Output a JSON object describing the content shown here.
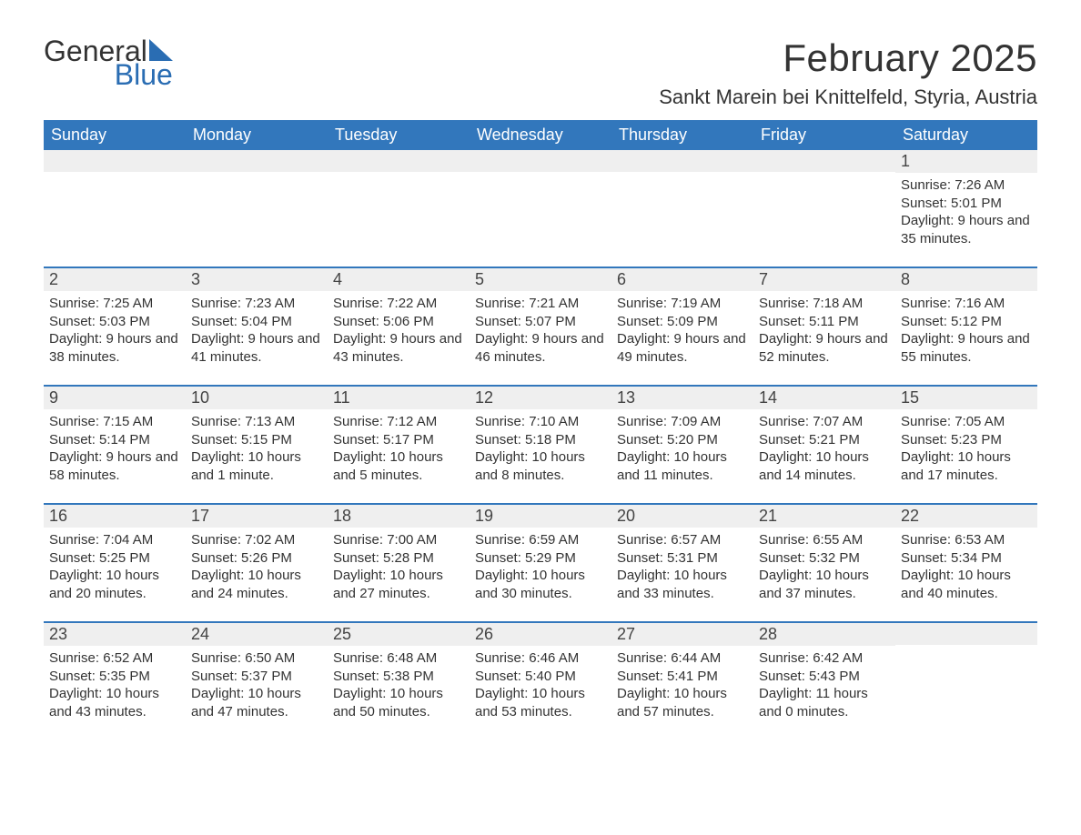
{
  "brand": {
    "name1": "General",
    "name2": "Blue",
    "accent": "#2a6db3"
  },
  "header": {
    "title": "February 2025",
    "location": "Sankt Marein bei Knittelfeld, Styria, Austria"
  },
  "colors": {
    "header_bg": "#3277bc",
    "header_text": "#ffffff",
    "daynum_bg": "#efefef",
    "divider": "#3277bc",
    "text": "#333333",
    "page_bg": "#ffffff"
  },
  "dow": [
    "Sunday",
    "Monday",
    "Tuesday",
    "Wednesday",
    "Thursday",
    "Friday",
    "Saturday"
  ],
  "weeks": [
    [
      {
        "n": "",
        "sr": "",
        "ss": "",
        "dl": ""
      },
      {
        "n": "",
        "sr": "",
        "ss": "",
        "dl": ""
      },
      {
        "n": "",
        "sr": "",
        "ss": "",
        "dl": ""
      },
      {
        "n": "",
        "sr": "",
        "ss": "",
        "dl": ""
      },
      {
        "n": "",
        "sr": "",
        "ss": "",
        "dl": ""
      },
      {
        "n": "",
        "sr": "",
        "ss": "",
        "dl": ""
      },
      {
        "n": "1",
        "sr": "Sunrise: 7:26 AM",
        "ss": "Sunset: 5:01 PM",
        "dl": "Daylight: 9 hours and 35 minutes."
      }
    ],
    [
      {
        "n": "2",
        "sr": "Sunrise: 7:25 AM",
        "ss": "Sunset: 5:03 PM",
        "dl": "Daylight: 9 hours and 38 minutes."
      },
      {
        "n": "3",
        "sr": "Sunrise: 7:23 AM",
        "ss": "Sunset: 5:04 PM",
        "dl": "Daylight: 9 hours and 41 minutes."
      },
      {
        "n": "4",
        "sr": "Sunrise: 7:22 AM",
        "ss": "Sunset: 5:06 PM",
        "dl": "Daylight: 9 hours and 43 minutes."
      },
      {
        "n": "5",
        "sr": "Sunrise: 7:21 AM",
        "ss": "Sunset: 5:07 PM",
        "dl": "Daylight: 9 hours and 46 minutes."
      },
      {
        "n": "6",
        "sr": "Sunrise: 7:19 AM",
        "ss": "Sunset: 5:09 PM",
        "dl": "Daylight: 9 hours and 49 minutes."
      },
      {
        "n": "7",
        "sr": "Sunrise: 7:18 AM",
        "ss": "Sunset: 5:11 PM",
        "dl": "Daylight: 9 hours and 52 minutes."
      },
      {
        "n": "8",
        "sr": "Sunrise: 7:16 AM",
        "ss": "Sunset: 5:12 PM",
        "dl": "Daylight: 9 hours and 55 minutes."
      }
    ],
    [
      {
        "n": "9",
        "sr": "Sunrise: 7:15 AM",
        "ss": "Sunset: 5:14 PM",
        "dl": "Daylight: 9 hours and 58 minutes."
      },
      {
        "n": "10",
        "sr": "Sunrise: 7:13 AM",
        "ss": "Sunset: 5:15 PM",
        "dl": "Daylight: 10 hours and 1 minute."
      },
      {
        "n": "11",
        "sr": "Sunrise: 7:12 AM",
        "ss": "Sunset: 5:17 PM",
        "dl": "Daylight: 10 hours and 5 minutes."
      },
      {
        "n": "12",
        "sr": "Sunrise: 7:10 AM",
        "ss": "Sunset: 5:18 PM",
        "dl": "Daylight: 10 hours and 8 minutes."
      },
      {
        "n": "13",
        "sr": "Sunrise: 7:09 AM",
        "ss": "Sunset: 5:20 PM",
        "dl": "Daylight: 10 hours and 11 minutes."
      },
      {
        "n": "14",
        "sr": "Sunrise: 7:07 AM",
        "ss": "Sunset: 5:21 PM",
        "dl": "Daylight: 10 hours and 14 minutes."
      },
      {
        "n": "15",
        "sr": "Sunrise: 7:05 AM",
        "ss": "Sunset: 5:23 PM",
        "dl": "Daylight: 10 hours and 17 minutes."
      }
    ],
    [
      {
        "n": "16",
        "sr": "Sunrise: 7:04 AM",
        "ss": "Sunset: 5:25 PM",
        "dl": "Daylight: 10 hours and 20 minutes."
      },
      {
        "n": "17",
        "sr": "Sunrise: 7:02 AM",
        "ss": "Sunset: 5:26 PM",
        "dl": "Daylight: 10 hours and 24 minutes."
      },
      {
        "n": "18",
        "sr": "Sunrise: 7:00 AM",
        "ss": "Sunset: 5:28 PM",
        "dl": "Daylight: 10 hours and 27 minutes."
      },
      {
        "n": "19",
        "sr": "Sunrise: 6:59 AM",
        "ss": "Sunset: 5:29 PM",
        "dl": "Daylight: 10 hours and 30 minutes."
      },
      {
        "n": "20",
        "sr": "Sunrise: 6:57 AM",
        "ss": "Sunset: 5:31 PM",
        "dl": "Daylight: 10 hours and 33 minutes."
      },
      {
        "n": "21",
        "sr": "Sunrise: 6:55 AM",
        "ss": "Sunset: 5:32 PM",
        "dl": "Daylight: 10 hours and 37 minutes."
      },
      {
        "n": "22",
        "sr": "Sunrise: 6:53 AM",
        "ss": "Sunset: 5:34 PM",
        "dl": "Daylight: 10 hours and 40 minutes."
      }
    ],
    [
      {
        "n": "23",
        "sr": "Sunrise: 6:52 AM",
        "ss": "Sunset: 5:35 PM",
        "dl": "Daylight: 10 hours and 43 minutes."
      },
      {
        "n": "24",
        "sr": "Sunrise: 6:50 AM",
        "ss": "Sunset: 5:37 PM",
        "dl": "Daylight: 10 hours and 47 minutes."
      },
      {
        "n": "25",
        "sr": "Sunrise: 6:48 AM",
        "ss": "Sunset: 5:38 PM",
        "dl": "Daylight: 10 hours and 50 minutes."
      },
      {
        "n": "26",
        "sr": "Sunrise: 6:46 AM",
        "ss": "Sunset: 5:40 PM",
        "dl": "Daylight: 10 hours and 53 minutes."
      },
      {
        "n": "27",
        "sr": "Sunrise: 6:44 AM",
        "ss": "Sunset: 5:41 PM",
        "dl": "Daylight: 10 hours and 57 minutes."
      },
      {
        "n": "28",
        "sr": "Sunrise: 6:42 AM",
        "ss": "Sunset: 5:43 PM",
        "dl": "Daylight: 11 hours and 0 minutes."
      },
      {
        "n": "",
        "sr": "",
        "ss": "",
        "dl": ""
      }
    ]
  ]
}
